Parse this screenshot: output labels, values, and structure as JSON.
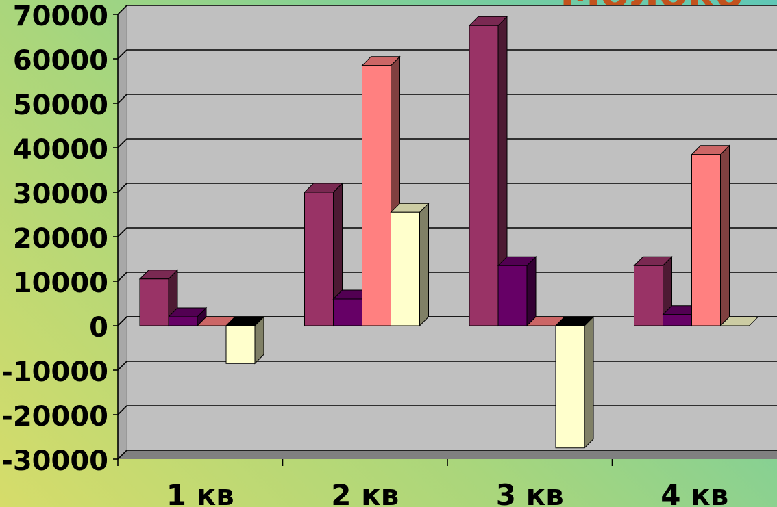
{
  "chart_data": {
    "type": "bar",
    "title": "Молоко",
    "categories": [
      "1 кв",
      "2 кв",
      "3 кв",
      "4 кв"
    ],
    "series": [
      {
        "values": [
          10500,
          30000,
          67500,
          13500
        ],
        "color": "#993366"
      },
      {
        "values": [
          2000,
          6000,
          13500,
          2500
        ],
        "color": "#660066"
      },
      {
        "values": [
          0,
          58500,
          0,
          38500
        ],
        "color": "#ff8080"
      },
      {
        "values": [
          -8500,
          25500,
          -27500,
          0
        ],
        "color": "#ffffcc"
      }
    ],
    "ylim": [
      -30000,
      70000
    ],
    "yticks": [
      "70000",
      "60000",
      "50000",
      "40000",
      "30000",
      "20000",
      "10000",
      "0",
      "-10000",
      "-20000",
      "-30000"
    ],
    "grid": true,
    "xlabel": "",
    "ylabel": ""
  }
}
